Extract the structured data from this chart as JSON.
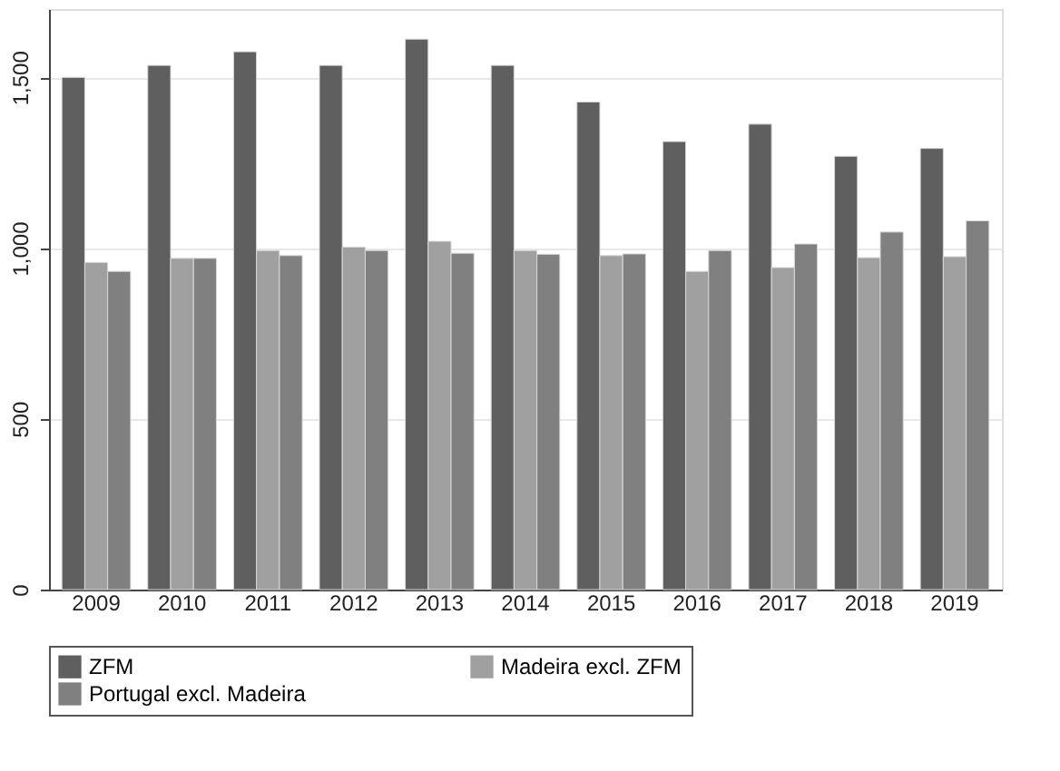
{
  "chart_data": {
    "type": "bar",
    "categories": [
      "2009",
      "2010",
      "2011",
      "2012",
      "2013",
      "2014",
      "2015",
      "2016",
      "2017",
      "2018",
      "2019"
    ],
    "series": [
      {
        "name": "ZFM",
        "color": "#5f5f5f",
        "values": [
          1500,
          1535,
          1575,
          1535,
          1612,
          1535,
          1428,
          1312,
          1363,
          1269,
          1292
        ]
      },
      {
        "name": "Madeira excl. ZFM",
        "color": "#a0a0a0",
        "values": [
          958,
          970,
          993,
          1003,
          1020,
          993,
          978,
          932,
          943,
          972,
          975
        ]
      },
      {
        "name": "Portugal excl. Madeira",
        "color": "#808080",
        "values": [
          932,
          970,
          978,
          993,
          985,
          982,
          983,
          993,
          1012,
          1047,
          1080
        ]
      }
    ],
    "ylim": [
      0,
      1700
    ],
    "yticks": [
      0,
      500,
      {
        "value": 1000,
        "label": "1,000"
      },
      {
        "value": 1500,
        "label": "1,500"
      }
    ],
    "grid": "y",
    "legend": "bottom"
  }
}
